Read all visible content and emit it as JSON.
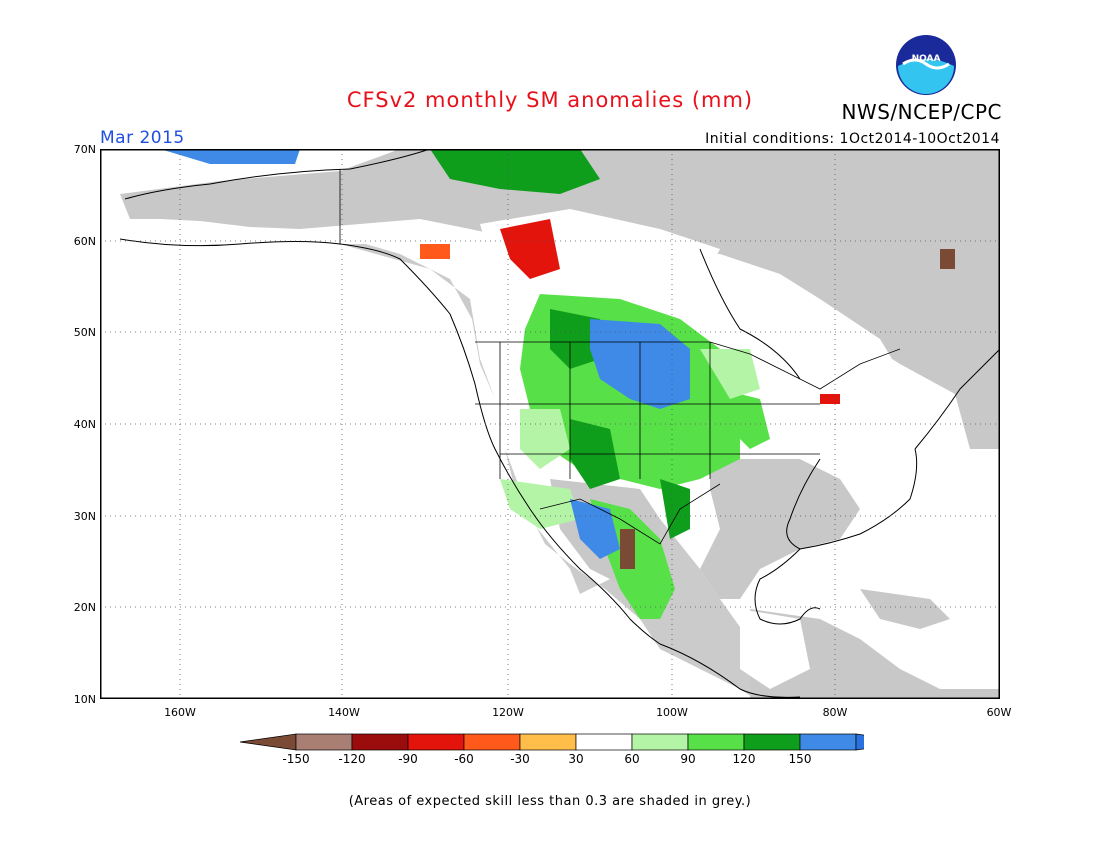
{
  "header": {
    "title": "CFSv2 monthly SM anomalies (mm)",
    "agency": "NWS/NCEP/CPC",
    "valid_month": "Mar 2015",
    "initial_conditions": "Initial conditions: 1Oct2014-10Oct2014",
    "logo_text": "NOAA"
  },
  "map": {
    "projection": "lat-lon",
    "lon_range": [
      -172,
      -60
    ],
    "lat_range": [
      10,
      70
    ],
    "lat_labels": [
      "70N",
      "60N",
      "50N",
      "40N",
      "30N",
      "20N",
      "10N"
    ],
    "lon_labels": [
      "160W",
      "140W",
      "120W",
      "100W",
      "80W",
      "60W"
    ],
    "grid": "dotted",
    "grey_fill_color": "#c8c8c8",
    "ocean_color": "#ffffff"
  },
  "colorbar": {
    "labels": [
      "-150",
      "-120",
      "-90",
      "-60",
      "-30",
      "30",
      "60",
      "90",
      "120",
      "150"
    ],
    "colors": [
      "#7b4a35",
      "#a87f72",
      "#9b0d0d",
      "#e3140b",
      "#ff5a1c",
      "#ffbe4a",
      "#ffffff",
      "#b4f4a6",
      "#58e048",
      "#0f9e1c",
      "#3e8ae6",
      "#2a72e0"
    ]
  },
  "footnote": "(Areas of expected skill less than 0.3 are shaded in grey.)"
}
